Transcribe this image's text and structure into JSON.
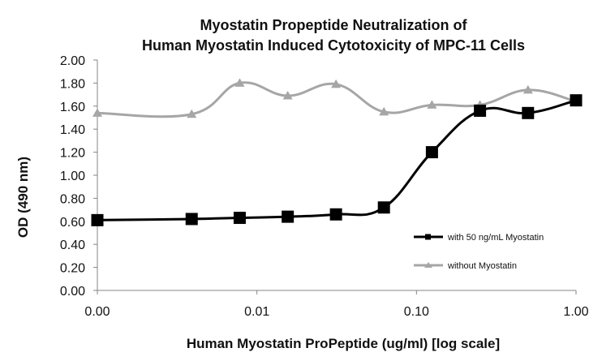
{
  "chart_data": {
    "type": "line",
    "title": "Myostatin Propeptide Neutralization of",
    "subtitle": "Human Myostatin Induced Cytotoxicity of MPC-11 Cells",
    "xlabel": "Human Myostatin ProPeptide (ug/ml) [log scale]",
    "ylabel": "OD (490 nm)",
    "x_scale": "log",
    "x_tick_labels": [
      "0.00",
      "0.01",
      "0.10",
      "1.00"
    ],
    "y_tick_labels": [
      "0.00",
      "0.20",
      "0.40",
      "0.60",
      "0.80",
      "1.00",
      "1.20",
      "1.40",
      "1.60",
      "1.80",
      "2.00"
    ],
    "ylim": [
      0,
      2
    ],
    "grid": false,
    "legend_position": "right",
    "x": [
      0.001,
      0.0039,
      0.0078,
      0.0156,
      0.0313,
      0.0625,
      0.125,
      0.25,
      0.5,
      1.0
    ],
    "series": [
      {
        "name": "with 50 ng/mL Myostatin",
        "color": "#000000",
        "marker": "square",
        "values": [
          0.61,
          0.62,
          0.63,
          0.64,
          0.66,
          0.72,
          1.2,
          1.56,
          1.54,
          1.65
        ]
      },
      {
        "name": "without Myostatin",
        "color": "#a6a6a6",
        "marker": "triangle",
        "values": [
          1.54,
          1.53,
          1.8,
          1.69,
          1.79,
          1.55,
          1.61,
          1.61,
          1.74,
          1.64
        ]
      }
    ]
  }
}
